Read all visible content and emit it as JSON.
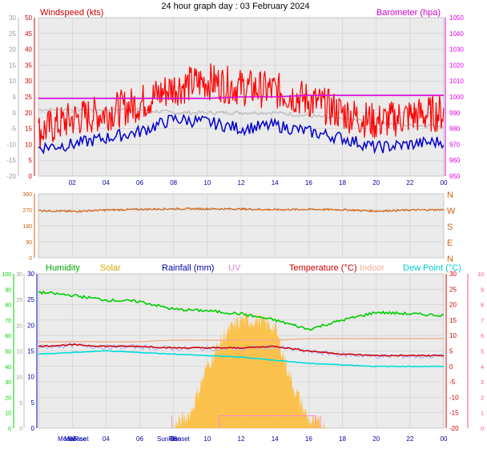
{
  "title": "24 hour graph day : 03 February 2024",
  "x_ticks": [
    "02",
    "04",
    "06",
    "08",
    "10",
    "12",
    "14",
    "16",
    "18",
    "20",
    "22",
    "00"
  ],
  "colors": {
    "plot_bg": "#ebebeb",
    "grid": "#c8c8c8",
    "wind_gust": "#ff0000",
    "wind_avg": "#0000cc",
    "barometer": "#e000e0",
    "baro_left": "#c0c0c0",
    "direction": "#d06010",
    "humidity": "#00cc00",
    "solar": "#ccaa00",
    "rainfall": "#0000aa",
    "uv": "#e080e0",
    "temperature": "#cc0000",
    "indoor": "#f0b090",
    "dewpoint": "#00dddd",
    "temp_axis": "#ff5577",
    "solar_fill": "#ffbb33",
    "solar_bar": "#ff88cc"
  },
  "panels": {
    "wind": {
      "left_label": "Windspeed (kts)",
      "right_label": "Barometer (hpa)",
      "left_ticks": [
        "50",
        "45",
        "40",
        "35",
        "30",
        "25",
        "20",
        "15",
        "10",
        "5",
        "0"
      ],
      "gray_ticks": [
        "30",
        "25",
        "20",
        "15",
        "10",
        "5",
        "0",
        "-5",
        "-10",
        "-15",
        "-20"
      ],
      "right_ticks": [
        "1050",
        "1040",
        "1030",
        "1020",
        "1010",
        "1000",
        "990",
        "980",
        "970",
        "960",
        "950"
      ]
    },
    "direction": {
      "left_ticks": [
        "360",
        "270",
        "180",
        "90",
        "0"
      ],
      "right_ticks": [
        "N",
        "W",
        "S",
        "E",
        "N"
      ]
    },
    "lower": {
      "legend": {
        "humidity": "Humidity",
        "solar": "Solar",
        "rainfall": "Rainfall (mm)",
        "uv": "UV",
        "temperature": "Temperature (°C)",
        "indoor": "Indoor",
        "dewpoint": "Dew Point (°C)"
      },
      "humidity_ticks": [
        "100",
        "90",
        "80",
        "70",
        "60",
        "50",
        "40",
        "30",
        "20",
        "10",
        "0"
      ],
      "gray_ticks": [
        "30",
        "25",
        "20",
        "15",
        "10",
        "5",
        "0"
      ],
      "rain_ticks": [
        "30",
        "25",
        "20",
        "15",
        "10",
        "5",
        "0"
      ],
      "temp_ticks": [
        "30",
        "25",
        "20",
        "15",
        "10",
        "5",
        "0",
        "-5",
        "-10",
        "-15",
        "-20"
      ],
      "uv_ticks": [
        "10",
        "9",
        "8",
        "7",
        "6",
        "5",
        "4",
        "3",
        "2",
        "1",
        "0"
      ],
      "x_ticks": [
        "02",
        "04",
        "06",
        "08",
        "10",
        "12",
        "14",
        "16",
        "18",
        "20",
        "22",
        "00"
      ],
      "events": [
        "MoonRise",
        "Moonset",
        "SunRise",
        "Sunset"
      ]
    }
  },
  "chart_data": [
    {
      "type": "line",
      "title": "24 hour graph day : 03 February 2024",
      "x": [
        0,
        2,
        4,
        6,
        8,
        10,
        12,
        14,
        16,
        18,
        20,
        22,
        24
      ],
      "x_tick_labels": [
        "02",
        "04",
        "06",
        "08",
        "10",
        "12",
        "14",
        "16",
        "18",
        "20",
        "22",
        "00"
      ],
      "series": [
        {
          "name": "Windspeed (kts)",
          "axis": "left",
          "values": [
            14,
            16,
            18,
            20,
            23,
            24,
            22,
            21,
            19,
            18,
            15,
            16,
            17
          ]
        },
        {
          "name": "Barometer (hpa)",
          "axis": "right",
          "values": [
            999,
            999,
            999,
            999,
            999,
            999,
            1000,
            1000,
            1001,
            1001,
            1001,
            1001,
            1001
          ]
        }
      ],
      "left_ylim": [
        0,
        50
      ],
      "right_ylim": [
        950,
        1050
      ],
      "gust_values": [
        14,
        18,
        20,
        23,
        28,
        30,
        28,
        27,
        24,
        20,
        17,
        19,
        20
      ],
      "avg_values": [
        9,
        10,
        12,
        14,
        18,
        17,
        15,
        16,
        14,
        12,
        9,
        10,
        11
      ],
      "grey_values": [
        21,
        21,
        21,
        21,
        20,
        20,
        20,
        20,
        19,
        18,
        17,
        16,
        16
      ]
    },
    {
      "type": "scatter",
      "ylim": [
        0,
        360
      ],
      "y_tick_labels": [
        "360",
        "270",
        "180",
        "90",
        "0"
      ],
      "x": [
        0,
        2,
        4,
        6,
        8,
        10,
        12,
        14,
        16,
        18,
        20,
        22,
        24
      ],
      "values": [
        265,
        260,
        268,
        272,
        275,
        275,
        274,
        270,
        272,
        270,
        262,
        268,
        270
      ]
    },
    {
      "type": "line",
      "x": [
        0,
        2,
        4,
        6,
        8,
        10,
        12,
        14,
        16,
        18,
        20,
        22,
        24
      ],
      "series": [
        {
          "name": "Humidity",
          "axis": "humidity",
          "ylim": [
            0,
            100
          ],
          "values": [
            88,
            86,
            83,
            82,
            77,
            76,
            74,
            70,
            64,
            70,
            75,
            74,
            73
          ]
        },
        {
          "name": "Temperature (°C)",
          "axis": "temp",
          "ylim": [
            -20,
            30
          ],
          "values": [
            6.5,
            7,
            6.5,
            6.5,
            6,
            6,
            6,
            6.5,
            5,
            4,
            3.5,
            3.5,
            3.5
          ]
        },
        {
          "name": "Dew Point (°C)",
          "axis": "temp",
          "ylim": [
            -20,
            30
          ],
          "values": [
            4,
            4.5,
            5,
            4.5,
            4,
            3.5,
            3,
            2,
            1,
            0.5,
            0,
            0,
            0
          ]
        },
        {
          "name": "Indoor",
          "axis": "temp",
          "ylim": [
            -20,
            30
          ],
          "values": [
            8,
            8,
            8,
            8,
            8.5,
            8.5,
            8.5,
            8.5,
            9,
            9,
            9,
            9,
            9
          ]
        },
        {
          "name": "UV",
          "axis": "uv",
          "ylim": [
            0,
            10
          ],
          "values": [
            0,
            0,
            0,
            0,
            0,
            0,
            0.8,
            0.8,
            0.5,
            0,
            0,
            0,
            0
          ]
        }
      ],
      "solar": {
        "x": [
          8,
          9,
          10,
          11,
          12,
          13,
          14,
          15,
          16,
          17
        ],
        "values": [
          0,
          1,
          4,
          6,
          7,
          7,
          6.5,
          3,
          0.5,
          0
        ]
      },
      "rainfall": [
        0,
        0,
        0,
        0,
        0,
        0,
        0,
        0,
        0,
        0,
        0,
        0,
        0
      ]
    }
  ]
}
